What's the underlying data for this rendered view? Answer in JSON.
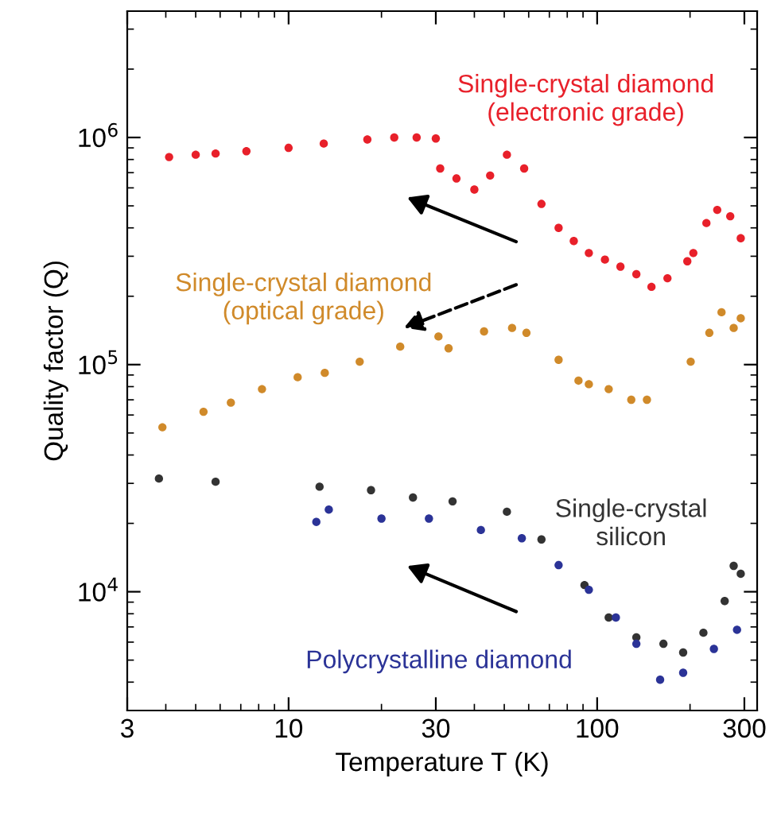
{
  "chart_data": {
    "type": "scatter",
    "xlabel": "Temperature T (K)",
    "ylabel": "Quality factor (Q)",
    "log": "xy",
    "marker": "circle",
    "grid": false,
    "legend": false,
    "xlim": [
      3,
      330
    ],
    "xticks": [
      3,
      10,
      30,
      100,
      300
    ],
    "ylim": [
      3000,
      3600000
    ],
    "yticks": [
      {
        "value": 10000,
        "label": "10$^{4}$"
      },
      {
        "value": 100000,
        "label": "10$^{5}$"
      },
      {
        "value": 1000000,
        "label": "10$^{6}$"
      }
    ],
    "series": [
      {
        "name": "Single-crystal diamond\n(electronic grade)",
        "color": "#e8202a",
        "x": [
          4.1,
          5.0,
          5.8,
          7.3,
          10,
          13,
          18,
          22,
          26,
          30,
          31,
          35,
          40,
          45,
          51,
          58,
          66,
          75,
          84,
          94,
          106,
          119,
          134,
          150,
          169,
          196,
          205,
          226,
          245,
          270,
          292
        ],
        "values": [
          820000,
          840000,
          850000,
          870000,
          900000,
          940000,
          980000,
          1000000,
          1000000,
          990000,
          730000,
          660000,
          590000,
          680000,
          840000,
          730000,
          510000,
          400000,
          350000,
          310000,
          290000,
          270000,
          250000,
          220000,
          240000,
          285000,
          310000,
          420000,
          480000,
          450000,
          360000
        ]
      },
      {
        "name": "Single-crystal diamond\n(optical grade)",
        "color": "#d08a2a",
        "x": [
          3.9,
          5.3,
          6.5,
          8.2,
          10.7,
          13.1,
          17,
          23,
          30.6,
          33,
          43,
          53,
          59,
          75,
          87,
          94,
          109,
          129,
          145,
          170,
          201,
          231,
          253,
          277,
          292
        ],
        "values": [
          53000,
          62000,
          68000,
          78000,
          88000,
          92000,
          103000,
          120000,
          133000,
          118000,
          140000,
          145000,
          138000,
          105000,
          85000,
          82000,
          78000,
          70000,
          70000,
          null,
          103000,
          138000,
          170000,
          145000,
          160000
        ]
      },
      {
        "name": "Single-crystal\nsilicon",
        "color": "#333333",
        "x": [
          3.8,
          5.8,
          12.6,
          18.5,
          25.3,
          34,
          51,
          66,
          91,
          109,
          134,
          164,
          190,
          221,
          259,
          277,
          292
        ],
        "values": [
          31500,
          30500,
          29000,
          28000,
          26000,
          25000,
          22500,
          17000,
          10700,
          7700,
          6300,
          5900,
          5400,
          6600,
          9100,
          13000,
          12000
        ]
      },
      {
        "name": "Polycrystalline diamond",
        "color": "#2b3397",
        "x": [
          12.3,
          13.5,
          20,
          28.5,
          42,
          57,
          75,
          94,
          115,
          134,
          160,
          190,
          239,
          284
        ],
        "values": [
          20300,
          23000,
          21000,
          21000,
          18700,
          17200,
          13100,
          10200,
          7700,
          5900,
          4100,
          4400,
          5600,
          6800
        ]
      }
    ]
  }
}
